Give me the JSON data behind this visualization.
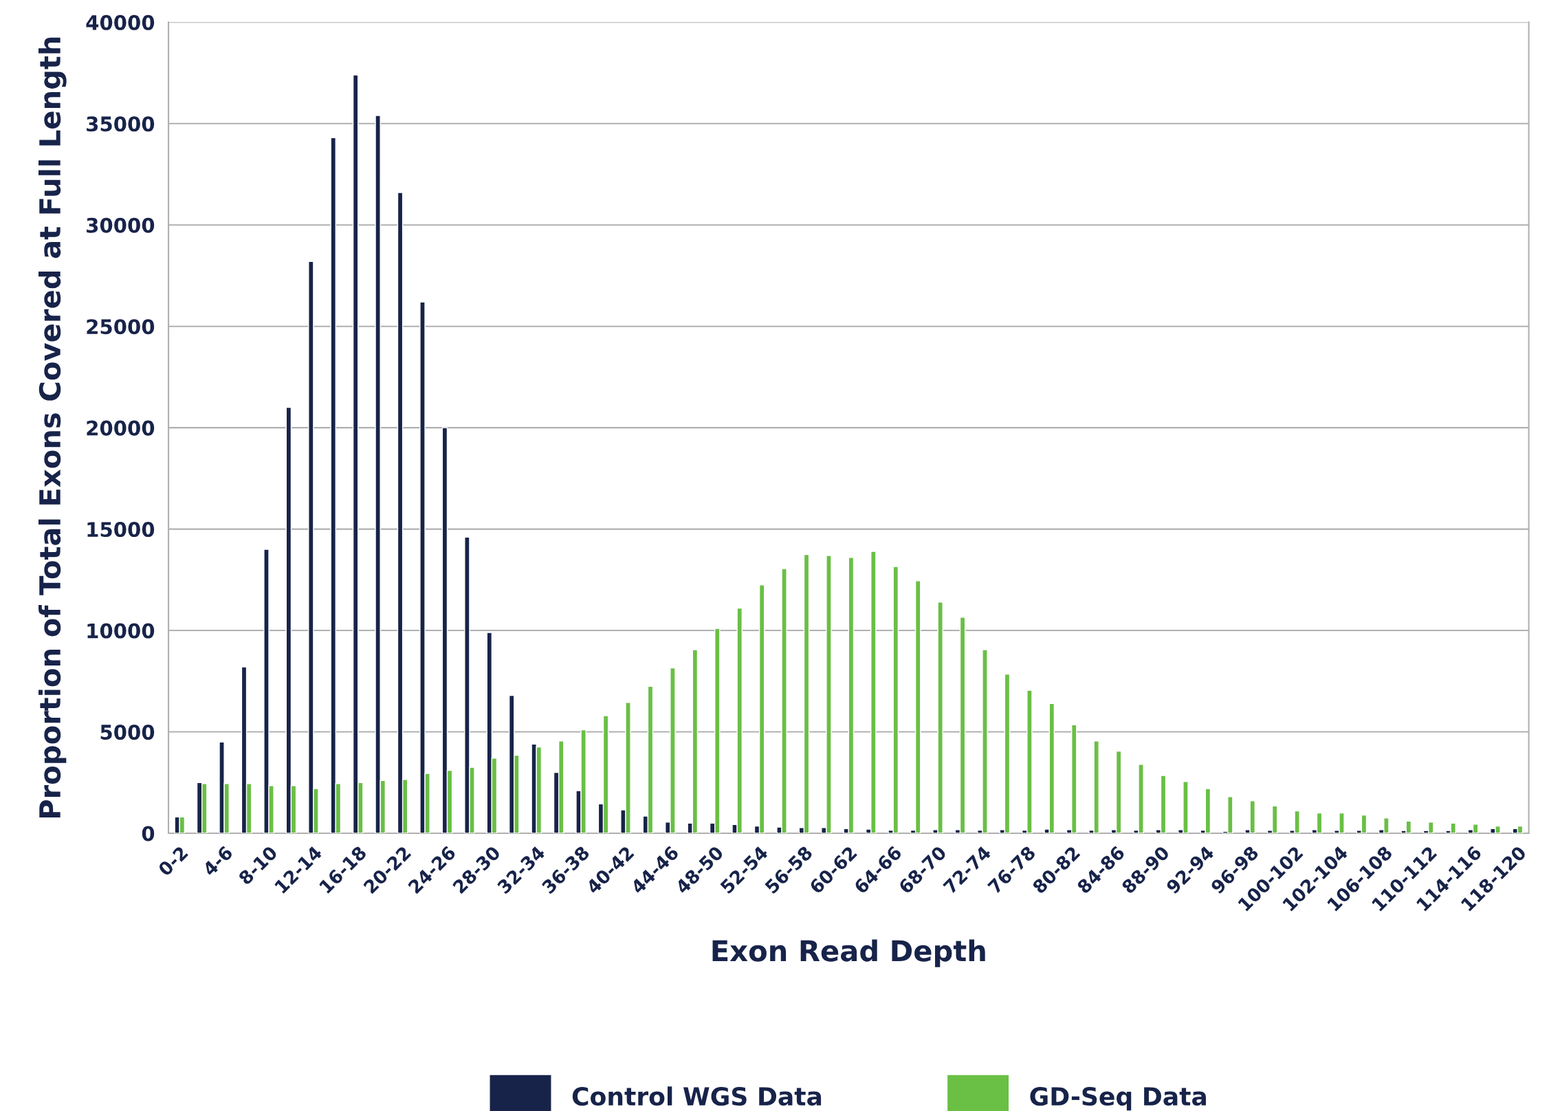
{
  "chart_data": {
    "type": "bar",
    "xlabel": "Exon Read Depth",
    "ylabel": "Proportion of Total Exons Covered at Full Length",
    "categories": [
      "0-2",
      null,
      "4-6",
      null,
      "8-10",
      null,
      "12-14",
      null,
      "16-18",
      null,
      "20-22",
      null,
      "24-26",
      null,
      "28-30",
      null,
      "32-34",
      null,
      "36-38",
      null,
      "40-42",
      null,
      "44-46",
      null,
      "48-50",
      null,
      "52-54",
      null,
      "56-58",
      null,
      "60-62",
      null,
      "64-66",
      null,
      "68-70",
      null,
      "72-74",
      null,
      "76-78",
      null,
      "80-82",
      null,
      "84-86",
      null,
      "88-90",
      null,
      "92-94",
      null,
      "96-98",
      null,
      "100-102",
      null,
      "102-104",
      null,
      "106-108",
      null,
      "110-112",
      null,
      "114-116",
      null,
      "118-120"
    ],
    "series": [
      {
        "name": "Control WGS Data",
        "color": "#172349",
        "values": [
          800,
          2500,
          4500,
          8200,
          14000,
          21000,
          28200,
          34300,
          37400,
          35400,
          31600,
          26200,
          20000,
          14600,
          9900,
          6800,
          4400,
          3000,
          2100,
          1450,
          1150,
          850,
          550,
          500,
          500,
          430,
          350,
          300,
          280,
          280,
          230,
          200,
          150,
          150,
          180,
          180,
          150,
          180,
          150,
          200,
          180,
          150,
          180,
          150,
          180,
          180,
          150,
          90,
          180,
          140,
          140,
          180,
          140,
          140,
          180,
          130,
          130,
          130,
          180,
          230,
          230
        ]
      },
      {
        "name": "GD-Seq Data",
        "color": "#6abf45",
        "values": [
          800,
          2450,
          2450,
          2450,
          2350,
          2350,
          2200,
          2450,
          2500,
          2600,
          2650,
          2950,
          3100,
          3250,
          3700,
          3850,
          4250,
          4550,
          5100,
          5800,
          6450,
          7250,
          8150,
          9050,
          10100,
          11100,
          12250,
          13050,
          13750,
          13700,
          13600,
          13900,
          13150,
          12450,
          11400,
          10650,
          9050,
          7850,
          7050,
          6400,
          5350,
          4550,
          4050,
          3400,
          2850,
          2550,
          2200,
          1800,
          1600,
          1350,
          1100,
          1000,
          1000,
          900,
          750,
          600,
          550,
          500,
          450,
          350,
          350
        ]
      }
    ],
    "ylim": [
      0,
      40000
    ],
    "yticks": [
      0,
      5000,
      10000,
      15000,
      20000,
      25000,
      30000,
      35000,
      40000
    ],
    "grid": "y",
    "legend": "bottom"
  }
}
